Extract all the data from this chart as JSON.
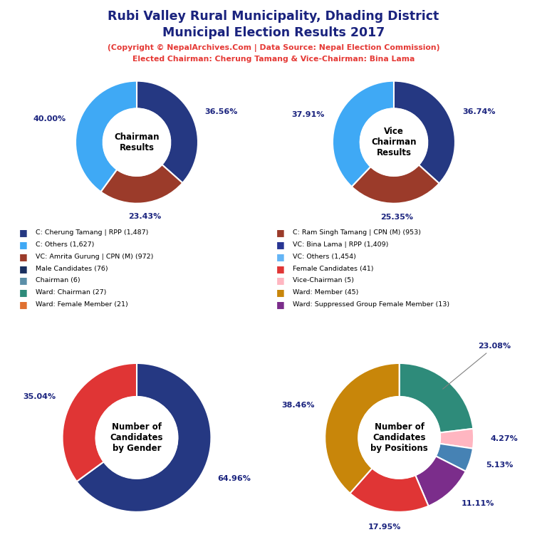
{
  "title_line1": "Rubi Valley Rural Municipality, Dhading District",
  "title_line2": "Municipal Election Results 2017",
  "subtitle1": "(Copyright © NepalArchives.Com | Data Source: Nepal Election Commission)",
  "subtitle2": "Elected Chairman: Cherung Tamang & Vice-Chairman: Bina Lama",
  "chairman": {
    "values": [
      36.56,
      23.43,
      40.0
    ],
    "colors": [
      "#253882",
      "#9B3B2A",
      "#3fa9f5"
    ],
    "startangle": 90,
    "labels": [
      "36.56%",
      "23.43%",
      "40.00%"
    ],
    "label_colors": [
      "#1a237e",
      "#1a237e",
      "#1a237e"
    ],
    "center_text": "Chairman\nResults"
  },
  "vice_chairman": {
    "values": [
      36.74,
      25.35,
      37.91
    ],
    "colors": [
      "#253882",
      "#9B3B2A",
      "#3fa9f5"
    ],
    "startangle": 90,
    "labels": [
      "36.74%",
      "25.35%",
      "37.91%"
    ],
    "label_colors": [
      "#1a237e",
      "#1a237e",
      "#1a237e"
    ],
    "center_text": "Vice\nChairman\nResults"
  },
  "gender": {
    "values": [
      64.96,
      35.04
    ],
    "colors": [
      "#253882",
      "#e03535"
    ],
    "startangle": 90,
    "labels": [
      "64.96%",
      "35.04%"
    ],
    "label_colors": [
      "#1a237e",
      "#1a237e"
    ],
    "center_text": "Number of\nCandidates\nby Gender"
  },
  "positions": {
    "values": [
      23.08,
      4.27,
      5.13,
      11.11,
      17.95,
      38.46
    ],
    "colors": [
      "#2e8b7a",
      "#FFB6C1",
      "#4682B4",
      "#7B2D8B",
      "#e03535",
      "#C8860A"
    ],
    "startangle": 90,
    "labels": [
      "23.08%",
      "4.27%",
      "5.13%",
      "11.11%",
      "17.95%",
      "38.46%"
    ],
    "label_colors": [
      "#1a237e",
      "#1a237e",
      "#1a237e",
      "#1a237e",
      "#1a237e",
      "#1a237e"
    ],
    "center_text": "Number of\nCandidates\nby Positions"
  },
  "legend_items_left": [
    {
      "label": "C: Cherung Tamang | RPP (1,487)",
      "color": "#253882"
    },
    {
      "label": "C: Others (1,627)",
      "color": "#3fa9f5"
    },
    {
      "label": "VC: Amrita Gurung | CPN (M) (972)",
      "color": "#9B3B2A"
    },
    {
      "label": "Male Candidates (76)",
      "color": "#1a3060"
    },
    {
      "label": "Chairman (6)",
      "color": "#5b8fa8"
    },
    {
      "label": "Ward: Chairman (27)",
      "color": "#2e8b7a"
    },
    {
      "label": "Ward: Female Member (21)",
      "color": "#e07030"
    }
  ],
  "legend_items_right": [
    {
      "label": "C: Ram Singh Tamang | CPN (M) (953)",
      "color": "#9B3B2A"
    },
    {
      "label": "VC: Bina Lama | RPP (1,409)",
      "color": "#283593"
    },
    {
      "label": "VC: Others (1,454)",
      "color": "#64b5f6"
    },
    {
      "label": "Female Candidates (41)",
      "color": "#e03535"
    },
    {
      "label": "Vice-Chairman (5)",
      "color": "#FFB6C1"
    },
    {
      "label": "Ward: Member (45)",
      "color": "#C8860A"
    },
    {
      "label": "Ward: Suppressed Group Female Member (13)",
      "color": "#7B2D8B"
    }
  ]
}
